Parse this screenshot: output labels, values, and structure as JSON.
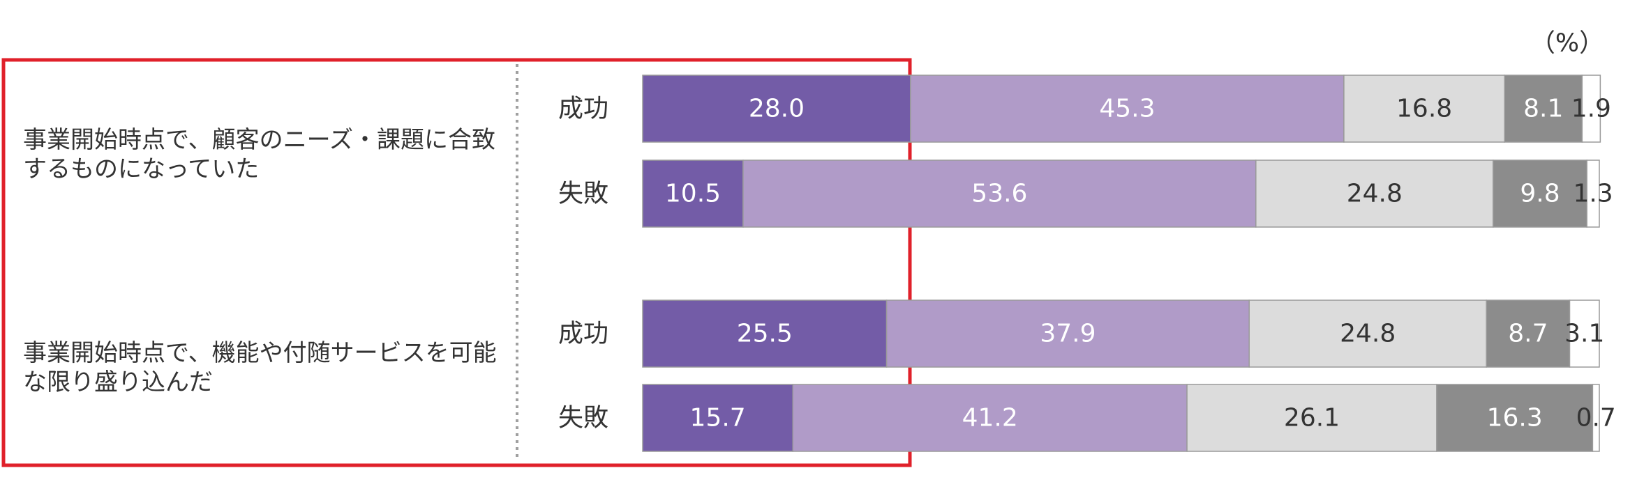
{
  "chart_data": {
    "type": "stacked-bar-horizontal",
    "unit": "（%）",
    "groups": [
      "事業開始時点で、顧客のニーズ・課題に合致するものになっていた",
      "事業開始時点で、機能や付随サービスを可能な限り盛り込んだ"
    ],
    "categories": [
      "成功",
      "失敗",
      "成功",
      "失敗"
    ],
    "xlim": [
      0,
      100
    ],
    "series": [
      {
        "color": "#735ca7",
        "values": [
          28.0,
          10.5,
          25.5,
          15.7
        ],
        "value_labels": [
          "28.0",
          "10.5",
          "25.5",
          "15.7"
        ]
      },
      {
        "color": "#b09bc8",
        "values": [
          45.3,
          53.6,
          37.9,
          41.2
        ],
        "value_labels": [
          "45.3",
          "53.6",
          "37.9",
          "41.2"
        ]
      },
      {
        "color": "#dcdcdc",
        "values": [
          16.8,
          24.8,
          24.8,
          26.1
        ],
        "value_labels": [
          "16.8",
          "24.8",
          "24.8",
          "26.1"
        ]
      },
      {
        "color": "#8c8c8c",
        "values": [
          8.1,
          9.8,
          8.7,
          16.3
        ],
        "value_labels": [
          "8.1",
          "9.8",
          "8.7",
          "16.3"
        ]
      },
      {
        "color": "#ffffff",
        "values": [
          1.9,
          1.3,
          3.1,
          0.7
        ],
        "value_labels": [
          "1.9",
          "1.3",
          "3.1",
          "0.7"
        ]
      }
    ]
  }
}
